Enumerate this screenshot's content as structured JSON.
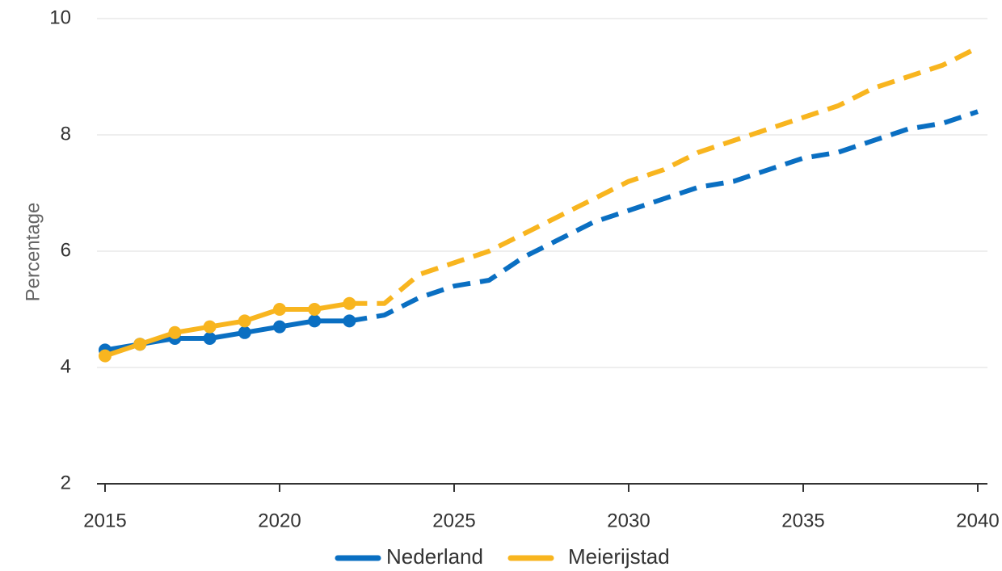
{
  "chart_data": {
    "type": "line",
    "title": "",
    "xlabel": "",
    "ylabel": "Percentage",
    "xlim": [
      2015,
      2040
    ],
    "ylim": [
      2,
      10
    ],
    "yticks": [
      2,
      4,
      6,
      8,
      10
    ],
    "xticks": [
      2015,
      2020,
      2025,
      2030,
      2035,
      2040
    ],
    "y_tick_labels": [
      "2",
      "4",
      "6",
      "8",
      "10"
    ],
    "x_tick_labels": [
      "2015",
      "2020",
      "2025",
      "2030",
      "2035",
      "2040"
    ],
    "grid": true,
    "legend_position": "bottom",
    "actual_until": 2022,
    "x": [
      2015,
      2016,
      2017,
      2018,
      2019,
      2020,
      2021,
      2022,
      2023,
      2024,
      2025,
      2026,
      2027,
      2028,
      2029,
      2030,
      2031,
      2032,
      2033,
      2034,
      2035,
      2036,
      2037,
      2038,
      2039,
      2040
    ],
    "series": [
      {
        "name": "Nederland",
        "color": "#0a6fc2",
        "values": [
          4.3,
          4.4,
          4.5,
          4.5,
          4.6,
          4.7,
          4.8,
          4.8,
          4.9,
          5.2,
          5.4,
          5.5,
          5.9,
          6.2,
          6.5,
          6.7,
          6.9,
          7.1,
          7.2,
          7.4,
          7.6,
          7.7,
          7.9,
          8.1,
          8.2,
          8.4
        ]
      },
      {
        "name": "Meierijstad",
        "color": "#f8b51f",
        "values": [
          4.2,
          4.4,
          4.6,
          4.7,
          4.8,
          5.0,
          5.0,
          5.1,
          5.1,
          5.6,
          5.8,
          6.0,
          6.3,
          6.6,
          6.9,
          7.2,
          7.4,
          7.7,
          7.9,
          8.1,
          8.3,
          8.5,
          8.8,
          9.0,
          9.2,
          9.5
        ]
      }
    ]
  }
}
